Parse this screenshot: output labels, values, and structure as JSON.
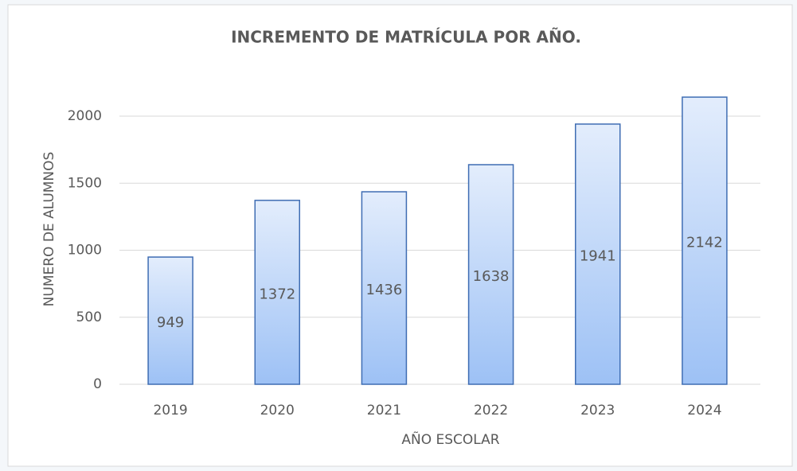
{
  "chart_data": {
    "type": "bar",
    "title": "INCREMENTO DE MATRÍCULA POR AÑO.",
    "x_label": "AÑO ESCOLAR",
    "y_label": "NUMERO DE ALUMNOS",
    "categories": [
      "2019",
      "2020",
      "2021",
      "2022",
      "2023",
      "2024"
    ],
    "values": [
      949,
      1372,
      1436,
      1638,
      1941,
      2142
    ],
    "color": "#9dc1f5",
    "ylim": [
      0,
      2250
    ],
    "yticks": [
      0,
      500,
      1000,
      1500,
      2000
    ],
    "grid": true
  }
}
